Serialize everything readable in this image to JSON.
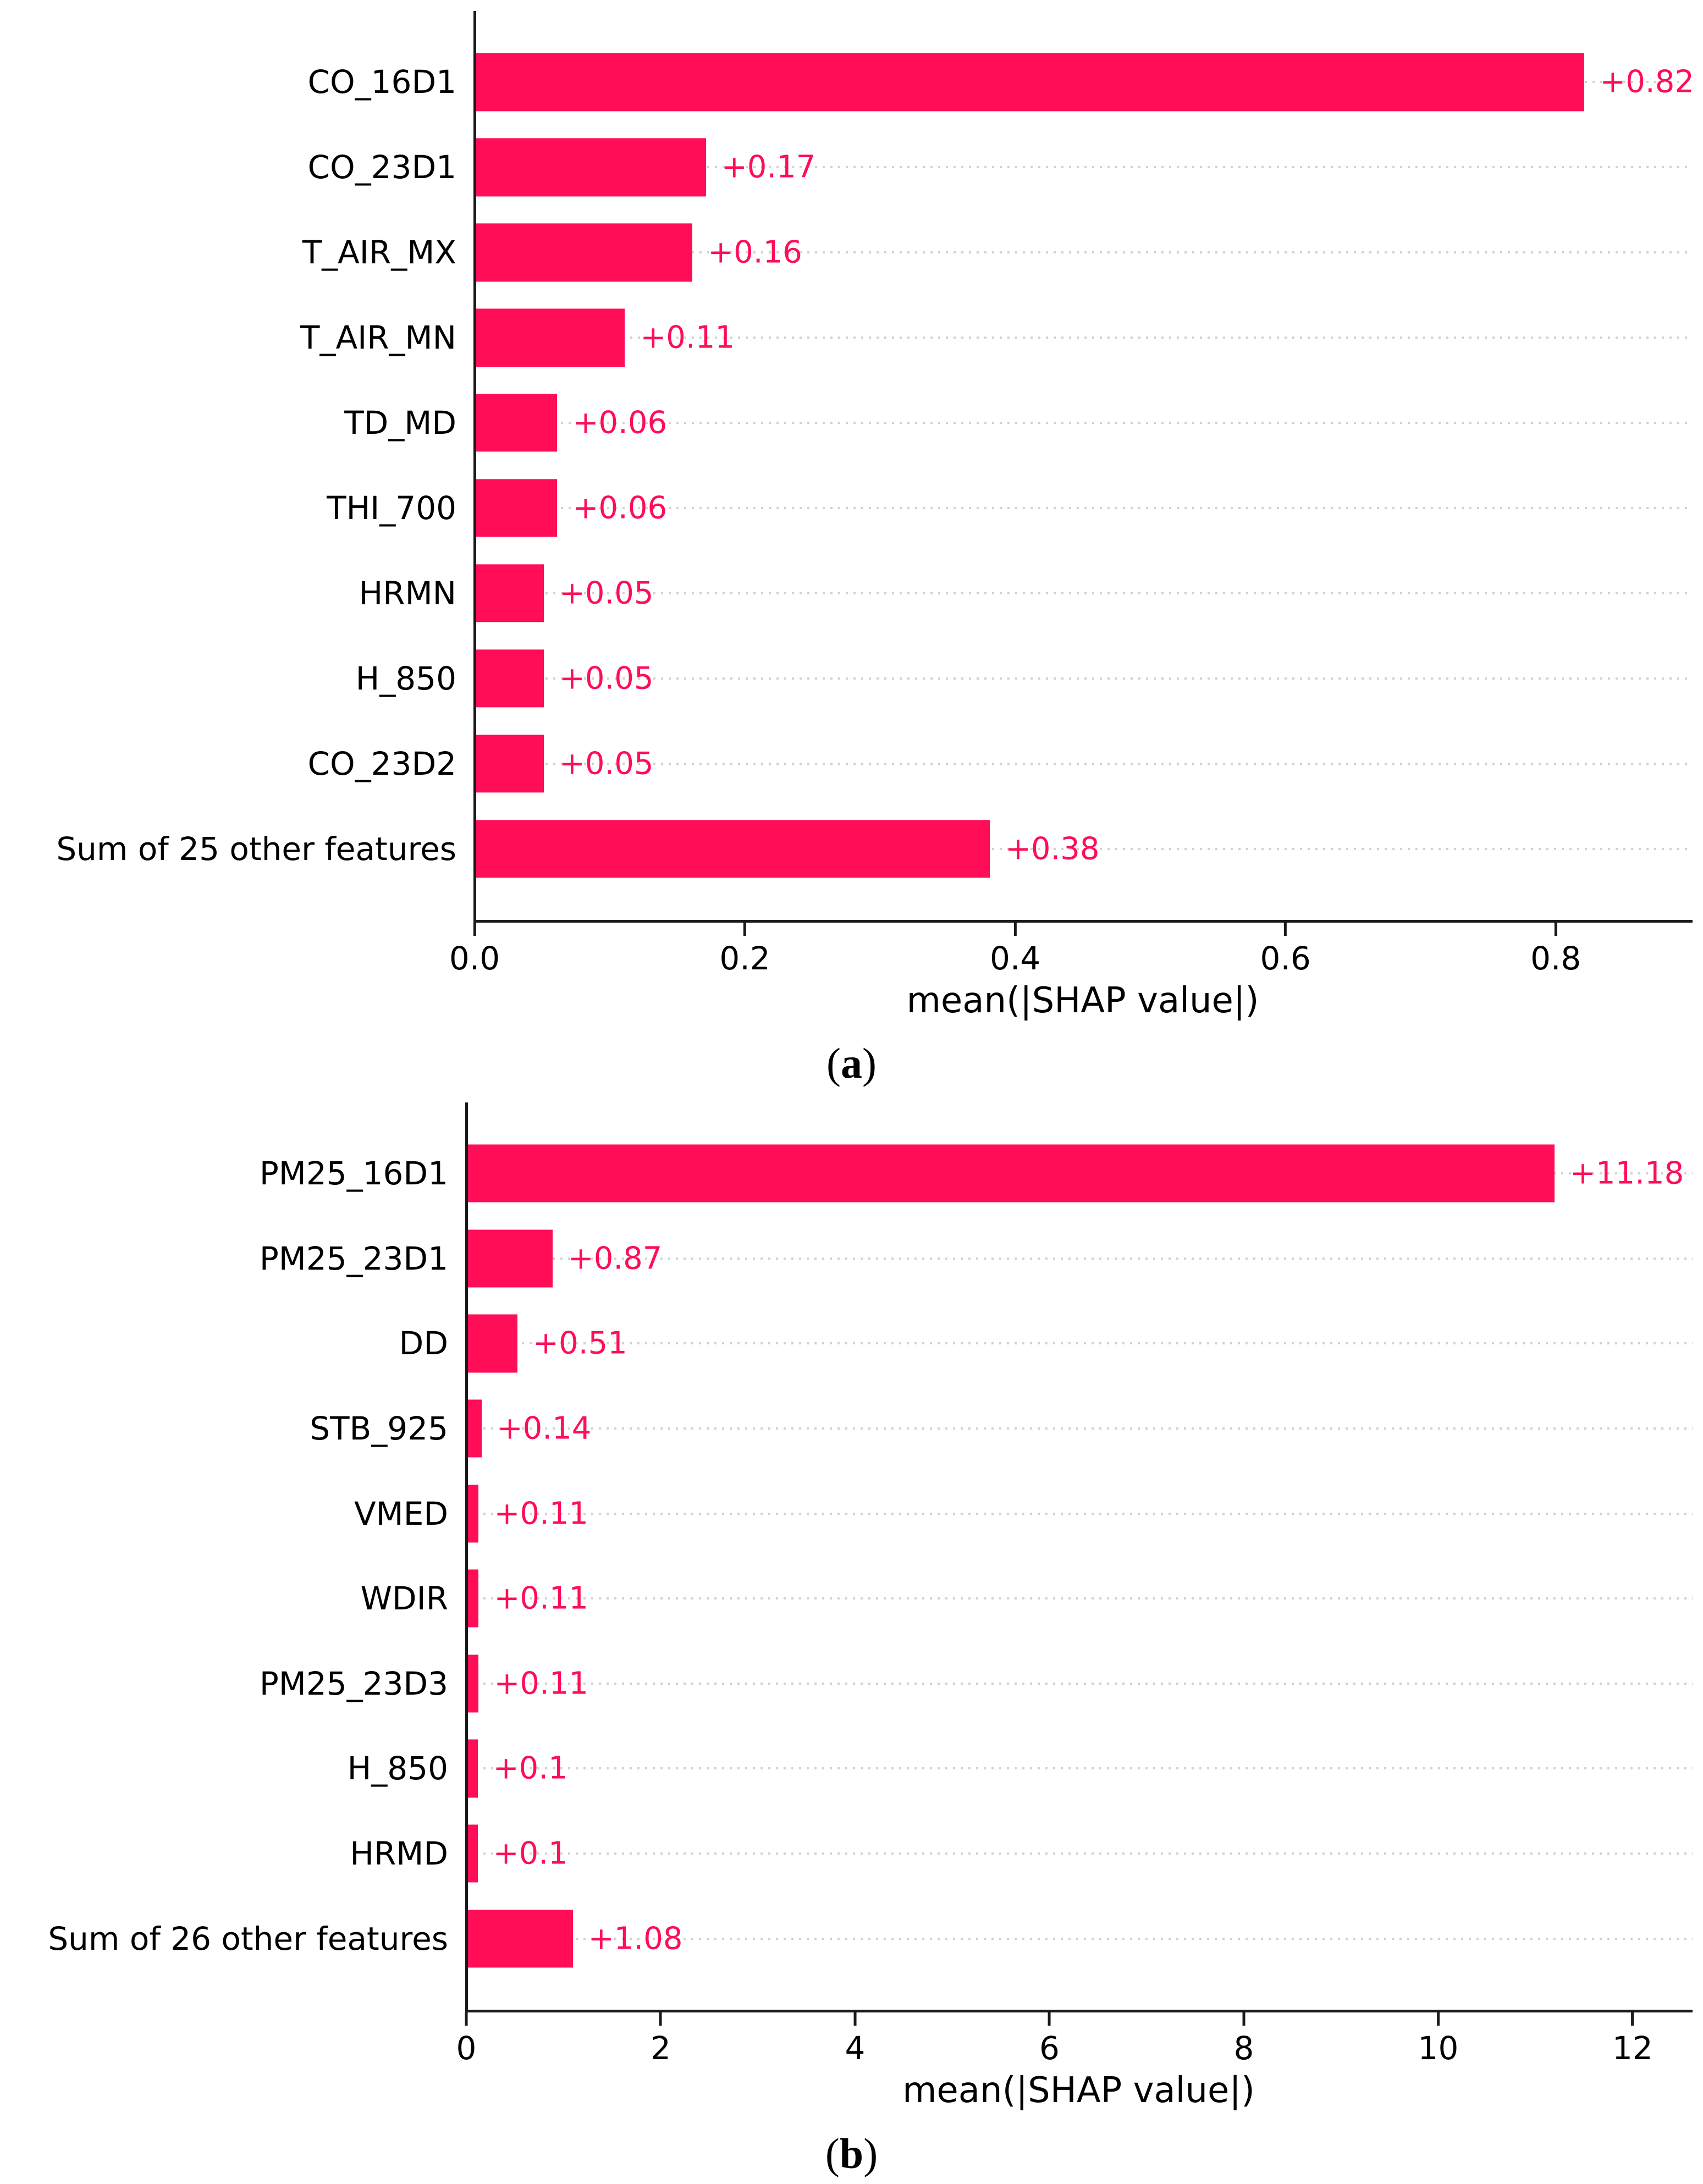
{
  "colors": {
    "bar": "#ff0d57",
    "value_label": "#ff0d57",
    "gridline": "#d2d2d2",
    "axis": "#1a1a1a",
    "text": "#000000",
    "background": "#ffffff"
  },
  "chart_data": [
    {
      "type": "bar",
      "orientation": "horizontal",
      "title": "",
      "xlabel": "mean(|SHAP value|)",
      "ylabel": "",
      "xlim": [
        0,
        0.9
      ],
      "grid": "horizontal-dotted",
      "legend": "none",
      "caption": {
        "open": "(",
        "letter": "a",
        "close": ")"
      },
      "xticks": [
        {
          "value": 0.0,
          "label": "0.0"
        },
        {
          "value": 0.2,
          "label": "0.2"
        },
        {
          "value": 0.4,
          "label": "0.4"
        },
        {
          "value": 0.6,
          "label": "0.6"
        },
        {
          "value": 0.8,
          "label": "0.8"
        }
      ],
      "bars": [
        {
          "feature": "CO_16D1",
          "value": 0.82,
          "value_label": "+0.82"
        },
        {
          "feature": "CO_23D1",
          "value": 0.17,
          "value_label": "+0.17"
        },
        {
          "feature": "T_AIR_MX",
          "value": 0.16,
          "value_label": "+0.16"
        },
        {
          "feature": "T_AIR_MN",
          "value": 0.11,
          "value_label": "+0.11"
        },
        {
          "feature": "TD_MD",
          "value": 0.06,
          "value_label": "+0.06"
        },
        {
          "feature": "THI_700",
          "value": 0.06,
          "value_label": "+0.06"
        },
        {
          "feature": "HRMN",
          "value": 0.05,
          "value_label": "+0.05"
        },
        {
          "feature": "H_850",
          "value": 0.05,
          "value_label": "+0.05"
        },
        {
          "feature": "CO_23D2",
          "value": 0.05,
          "value_label": "+0.05"
        },
        {
          "feature": "Sum of 25 other features",
          "value": 0.38,
          "value_label": "+0.38"
        }
      ]
    },
    {
      "type": "bar",
      "orientation": "horizontal",
      "title": "",
      "xlabel": "mean(|SHAP value|)",
      "ylabel": "",
      "xlim": [
        0,
        12.6
      ],
      "grid": "horizontal-dotted",
      "legend": "none",
      "caption": {
        "open": "(",
        "letter": "b",
        "close": ")"
      },
      "xticks": [
        {
          "value": 0,
          "label": "0"
        },
        {
          "value": 2,
          "label": "2"
        },
        {
          "value": 4,
          "label": "4"
        },
        {
          "value": 6,
          "label": "6"
        },
        {
          "value": 8,
          "label": "8"
        },
        {
          "value": 10,
          "label": "10"
        },
        {
          "value": 12,
          "label": "12"
        }
      ],
      "bars": [
        {
          "feature": "PM25_16D1",
          "value": 11.18,
          "value_label": "+11.18"
        },
        {
          "feature": "PM25_23D1",
          "value": 0.87,
          "value_label": "+0.87"
        },
        {
          "feature": "DD",
          "value": 0.51,
          "value_label": "+0.51"
        },
        {
          "feature": "STB_925",
          "value": 0.14,
          "value_label": "+0.14"
        },
        {
          "feature": "VMED",
          "value": 0.11,
          "value_label": "+0.11"
        },
        {
          "feature": "WDIR",
          "value": 0.11,
          "value_label": "+0.11"
        },
        {
          "feature": "PM25_23D3",
          "value": 0.11,
          "value_label": "+0.11"
        },
        {
          "feature": "H_850",
          "value": 0.1,
          "value_label": "+0.1"
        },
        {
          "feature": "HRMD",
          "value": 0.1,
          "value_label": "+0.1"
        },
        {
          "feature": "Sum of 26 other features",
          "value": 1.08,
          "value_label": "+1.08"
        }
      ]
    }
  ]
}
